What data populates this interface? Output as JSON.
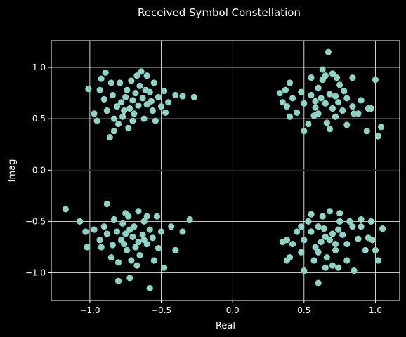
{
  "chart_data": {
    "type": "scatter",
    "title": "Received Symbol Constellation",
    "xlabel": "Real",
    "ylabel": "Imag",
    "xlim": [
      -1.27,
      1.17
    ],
    "ylim": [
      -1.27,
      1.26
    ],
    "xticks": [
      -1.0,
      -0.5,
      0.0,
      0.5,
      1.0
    ],
    "xtick_labels": [
      "−1.0",
      "−0.5",
      "0.0",
      "0.5",
      "1.0"
    ],
    "yticks": [
      -1.0,
      -0.5,
      0.0,
      0.5,
      1.0
    ],
    "ytick_labels": [
      "−1.0",
      "−0.5",
      "0.0",
      "0.5",
      "1.0"
    ],
    "grid": true,
    "colors": {
      "background": "#000000",
      "marker": "#8dd3c7",
      "grid": "#ffffff",
      "text": "#ffffff"
    },
    "series": [
      {
        "values": [
          [
            -0.7,
            0.68
          ],
          [
            -0.75,
            0.71
          ],
          [
            -0.66,
            0.63
          ],
          [
            -0.72,
            0.6
          ],
          [
            -0.68,
            0.75
          ],
          [
            -0.78,
            0.66
          ],
          [
            -0.63,
            0.7
          ],
          [
            -0.74,
            0.78
          ],
          [
            -0.81,
            0.62
          ],
          [
            -0.69,
            0.55
          ],
          [
            -0.6,
            0.64
          ],
          [
            -0.77,
            0.52
          ],
          [
            -0.65,
            0.82
          ],
          [
            -0.84,
            0.73
          ],
          [
            -0.58,
            0.76
          ],
          [
            -0.71,
            0.87
          ],
          [
            -0.88,
            0.58
          ],
          [
            -0.56,
            0.58
          ],
          [
            -0.62,
            0.5
          ],
          [
            -0.8,
            0.45
          ],
          [
            -0.52,
            0.71
          ],
          [
            -0.9,
            0.69
          ],
          [
            -0.67,
            0.92
          ],
          [
            -0.73,
            0.41
          ],
          [
            -0.55,
            0.85
          ],
          [
            -0.85,
            0.85
          ],
          [
            -0.5,
            0.62
          ],
          [
            -0.93,
            0.78
          ],
          [
            -0.97,
            0.55
          ],
          [
            -0.86,
            0.32
          ],
          [
            -0.83,
            0.38
          ],
          [
            -0.48,
            0.77
          ],
          [
            -0.45,
            0.66
          ],
          [
            -0.4,
            0.73
          ],
          [
            -0.35,
            0.72
          ],
          [
            -0.27,
            0.71
          ],
          [
            -1.01,
            0.79
          ],
          [
            -0.95,
            0.48
          ],
          [
            -0.92,
            0.89
          ],
          [
            -0.89,
            0.95
          ],
          [
            -0.64,
            0.96
          ],
          [
            -0.6,
            0.92
          ],
          [
            -0.54,
            0.48
          ],
          [
            -0.47,
            0.56
          ],
          [
            -0.79,
            0.85
          ],
          [
            -0.76,
            0.58
          ],
          [
            -0.61,
            0.78
          ],
          [
            -0.7,
            0.48
          ],
          [
            -0.83,
            0.5
          ],
          [
            -0.57,
            0.67
          ]
        ]
      },
      {
        "values": [
          [
            0.65,
            0.65
          ],
          [
            0.7,
            0.6
          ],
          [
            0.62,
            0.7
          ],
          [
            0.74,
            0.66
          ],
          [
            0.58,
            0.61
          ],
          [
            0.68,
            0.74
          ],
          [
            0.77,
            0.58
          ],
          [
            0.55,
            0.73
          ],
          [
            0.72,
            0.52
          ],
          [
            0.6,
            0.8
          ],
          [
            0.8,
            0.7
          ],
          [
            0.5,
            0.65
          ],
          [
            0.66,
            0.46
          ],
          [
            0.84,
            0.62
          ],
          [
            0.57,
            0.53
          ],
          [
            0.75,
            0.83
          ],
          [
            0.48,
            0.76
          ],
          [
            0.88,
            0.55
          ],
          [
            0.63,
            0.88
          ],
          [
            0.53,
            0.45
          ],
          [
            0.9,
            0.68
          ],
          [
            0.45,
            0.56
          ],
          [
            0.7,
            0.94
          ],
          [
            0.8,
            0.44
          ],
          [
            0.42,
            0.7
          ],
          [
            0.95,
            0.6
          ],
          [
            0.37,
            0.78
          ],
          [
            0.35,
            0.66
          ],
          [
            0.33,
            0.75
          ],
          [
            0.38,
            0.62
          ],
          [
            0.4,
            0.85
          ],
          [
            0.4,
            0.52
          ],
          [
            0.55,
            0.9
          ],
          [
            0.63,
            0.98
          ],
          [
            0.67,
            1.15
          ],
          [
            0.65,
            0.92
          ],
          [
            0.73,
            0.9
          ],
          [
            0.84,
            0.9
          ],
          [
            0.97,
            0.6
          ],
          [
            1.04,
            0.42
          ],
          [
            1.02,
            0.33
          ],
          [
            1.0,
            0.88
          ],
          [
            0.94,
            0.38
          ],
          [
            0.85,
            0.55
          ],
          [
            0.78,
            0.77
          ],
          [
            0.6,
            0.55
          ],
          [
            0.68,
            0.4
          ],
          [
            0.5,
            0.38
          ],
          [
            0.72,
            0.72
          ],
          [
            0.58,
            0.67
          ]
        ]
      },
      {
        "values": [
          [
            -0.7,
            -0.65
          ],
          [
            -0.75,
            -0.62
          ],
          [
            -0.66,
            -0.7
          ],
          [
            -0.72,
            -0.58
          ],
          [
            -0.68,
            -0.75
          ],
          [
            -0.78,
            -0.68
          ],
          [
            -0.63,
            -0.63
          ],
          [
            -0.74,
            -0.78
          ],
          [
            -0.81,
            -0.6
          ],
          [
            -0.69,
            -0.55
          ],
          [
            -0.6,
            -0.72
          ],
          [
            -0.77,
            -0.52
          ],
          [
            -0.65,
            -0.83
          ],
          [
            -0.84,
            -0.73
          ],
          [
            -0.58,
            -0.58
          ],
          [
            -0.71,
            -0.88
          ],
          [
            -0.88,
            -0.62
          ],
          [
            -0.56,
            -0.66
          ],
          [
            -0.62,
            -0.5
          ],
          [
            -0.8,
            -0.9
          ],
          [
            -0.52,
            -0.76
          ],
          [
            -0.9,
            -0.55
          ],
          [
            -0.67,
            -0.93
          ],
          [
            -0.73,
            -0.45
          ],
          [
            -0.55,
            -0.88
          ],
          [
            -0.85,
            -0.85
          ],
          [
            -0.5,
            -0.6
          ],
          [
            -0.93,
            -0.68
          ],
          [
            -0.97,
            -0.58
          ],
          [
            -1.17,
            -0.38
          ],
          [
            -1.07,
            -0.5
          ],
          [
            -1.03,
            -0.6
          ],
          [
            -1.02,
            -0.75
          ],
          [
            -0.88,
            -0.33
          ],
          [
            -0.8,
            -1.08
          ],
          [
            -0.72,
            -1.05
          ],
          [
            -0.58,
            -1.15
          ],
          [
            -0.48,
            -0.95
          ],
          [
            -0.4,
            -0.78
          ],
          [
            -0.35,
            -0.6
          ],
          [
            -0.43,
            -0.55
          ],
          [
            -0.3,
            -0.48
          ],
          [
            -0.53,
            -0.45
          ],
          [
            -0.6,
            -0.45
          ],
          [
            -0.66,
            -0.4
          ],
          [
            -0.75,
            -0.42
          ],
          [
            -0.83,
            -0.48
          ],
          [
            -0.92,
            -0.75
          ],
          [
            -0.62,
            -0.68
          ],
          [
            -0.76,
            -0.72
          ]
        ]
      },
      {
        "values": [
          [
            0.65,
            -0.65
          ],
          [
            0.7,
            -0.62
          ],
          [
            0.62,
            -0.7
          ],
          [
            0.74,
            -0.58
          ],
          [
            0.58,
            -0.75
          ],
          [
            0.68,
            -0.68
          ],
          [
            0.77,
            -0.63
          ],
          [
            0.55,
            -0.6
          ],
          [
            0.72,
            -0.78
          ],
          [
            0.6,
            -0.55
          ],
          [
            0.8,
            -0.72
          ],
          [
            0.5,
            -0.68
          ],
          [
            0.66,
            -0.85
          ],
          [
            0.84,
            -0.55
          ],
          [
            0.57,
            -0.88
          ],
          [
            0.75,
            -0.5
          ],
          [
            0.48,
            -0.8
          ],
          [
            0.88,
            -0.67
          ],
          [
            0.63,
            -0.45
          ],
          [
            0.53,
            -0.5
          ],
          [
            0.9,
            -0.55
          ],
          [
            0.45,
            -0.6
          ],
          [
            0.7,
            -0.93
          ],
          [
            0.8,
            -0.88
          ],
          [
            0.42,
            -0.72
          ],
          [
            0.95,
            -0.66
          ],
          [
            0.38,
            -0.68
          ],
          [
            0.35,
            -0.7
          ],
          [
            0.4,
            -0.85
          ],
          [
            0.38,
            -0.88
          ],
          [
            0.5,
            -0.98
          ],
          [
            0.6,
            -1.1
          ],
          [
            0.65,
            -0.95
          ],
          [
            0.74,
            -0.95
          ],
          [
            0.85,
            -0.98
          ],
          [
            0.93,
            -0.78
          ],
          [
            0.98,
            -0.68
          ],
          [
            1.02,
            -0.88
          ],
          [
            1.0,
            -0.78
          ],
          [
            1.05,
            -0.57
          ],
          [
            0.82,
            -0.5
          ],
          [
            0.9,
            -0.48
          ],
          [
            0.97,
            -0.5
          ],
          [
            0.75,
            -0.42
          ],
          [
            0.68,
            -0.4
          ],
          [
            0.55,
            -0.43
          ],
          [
            0.48,
            -0.55
          ],
          [
            0.6,
            -0.8
          ],
          [
            0.72,
            -0.72
          ],
          [
            0.64,
            -0.57
          ]
        ]
      }
    ]
  }
}
